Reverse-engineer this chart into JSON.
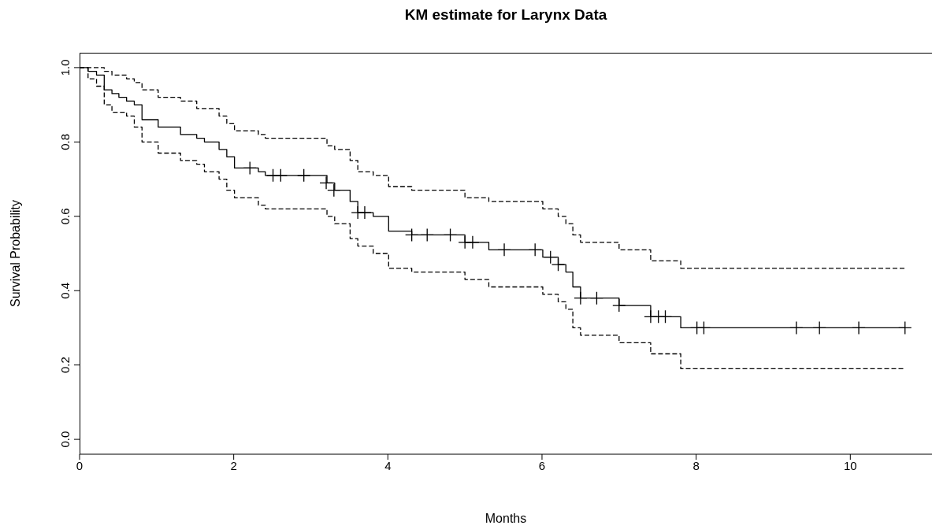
{
  "chart_data": {
    "type": "step",
    "title": "KM estimate for Larynx Data",
    "xlabel": "Months",
    "ylabel": "Survival Probability",
    "xlim": [
      0,
      11.06
    ],
    "xticks": [
      0,
      2,
      4,
      6,
      8,
      10
    ],
    "ylim": [
      -0.04,
      1.04
    ],
    "yticks": [
      {
        "value": 0,
        "label": "0.0"
      },
      {
        "value": 0.2,
        "label": "0.2"
      },
      {
        "value": 0.4,
        "label": "0.4"
      },
      {
        "value": 0.6,
        "label": "0.6"
      },
      {
        "value": 0.8,
        "label": "0.8"
      },
      {
        "value": 1,
        "label": "1.0"
      }
    ],
    "series": [
      {
        "color": "#000000",
        "line_style": "solid",
        "x": [
          0,
          0.11,
          0.22,
          0.32,
          0.42,
          0.51,
          0.61,
          0.71,
          0.81,
          1.02,
          1.31,
          1.52,
          1.62,
          1.81,
          1.91,
          2.01,
          2.32,
          2.41,
          3.21,
          3.31,
          3.51,
          3.61,
          3.81,
          4.01,
          4.31,
          5.0,
          5.31,
          6.01,
          6.21,
          6.31,
          6.4,
          6.5,
          7.0,
          7.41,
          7.8,
          10.71
        ],
        "values": [
          1,
          0.99,
          0.98,
          0.94,
          0.93,
          0.92,
          0.91,
          0.9,
          0.86,
          0.84,
          0.82,
          0.81,
          0.8,
          0.78,
          0.76,
          0.73,
          0.72,
          0.71,
          0.69,
          0.67,
          0.64,
          0.61,
          0.6,
          0.56,
          0.55,
          0.53,
          0.51,
          0.49,
          0.47,
          0.45,
          0.41,
          0.38,
          0.36,
          0.33,
          0.3,
          0.3
        ]
      },
      {
        "color": "#000000",
        "line_style": "dashed",
        "x": [
          0,
          0.32,
          0.42,
          0.51,
          0.61,
          0.71,
          0.81,
          1.02,
          1.31,
          1.52,
          1.62,
          1.81,
          1.91,
          2.01,
          2.32,
          2.41,
          3.21,
          3.31,
          3.51,
          3.61,
          3.81,
          4.01,
          4.31,
          5.0,
          5.31,
          6.01,
          6.21,
          6.31,
          6.4,
          6.5,
          7.0,
          7.41,
          7.8,
          10.71
        ],
        "values": [
          1,
          0.99,
          0.98,
          0.98,
          0.97,
          0.96,
          0.94,
          0.92,
          0.91,
          0.89,
          0.89,
          0.87,
          0.85,
          0.83,
          0.82,
          0.81,
          0.79,
          0.78,
          0.75,
          0.72,
          0.71,
          0.68,
          0.67,
          0.65,
          0.64,
          0.62,
          0.6,
          0.58,
          0.55,
          0.53,
          0.51,
          0.48,
          0.46,
          0.46
        ]
      },
      {
        "color": "#000000",
        "line_style": "dashed",
        "x": [
          0,
          0.11,
          0.22,
          0.32,
          0.42,
          0.51,
          0.61,
          0.71,
          0.81,
          1.02,
          1.31,
          1.52,
          1.62,
          1.81,
          1.91,
          2.01,
          2.32,
          2.41,
          3.21,
          3.31,
          3.51,
          3.61,
          3.81,
          4.01,
          4.31,
          5.0,
          5.31,
          6.01,
          6.21,
          6.31,
          6.4,
          6.5,
          7.0,
          7.41,
          7.8,
          10.71
        ],
        "values": [
          1,
          0.97,
          0.95,
          0.9,
          0.88,
          0.88,
          0.87,
          0.84,
          0.8,
          0.77,
          0.75,
          0.74,
          0.72,
          0.7,
          0.67,
          0.65,
          0.63,
          0.62,
          0.6,
          0.58,
          0.54,
          0.52,
          0.5,
          0.46,
          0.45,
          0.43,
          0.41,
          0.39,
          0.37,
          0.35,
          0.3,
          0.28,
          0.26,
          0.23,
          0.19,
          0.19
        ]
      },
      {
        "type": "scatter",
        "color": "#000000",
        "marker": "cross",
        "x": [
          2.21,
          2.51,
          2.61,
          2.91,
          3.2,
          3.3,
          3.61,
          3.7,
          4.31,
          4.51,
          4.81,
          5.0,
          5.1,
          5.51,
          5.91,
          6.11,
          6.21,
          6.5,
          6.71,
          7.0,
          7.41,
          7.51,
          7.6,
          8.01,
          8.1,
          9.3,
          9.6,
          10.11,
          10.71
        ],
        "values": [
          0.73,
          0.71,
          0.71,
          0.71,
          0.69,
          0.67,
          0.61,
          0.61,
          0.55,
          0.55,
          0.55,
          0.53,
          0.53,
          0.51,
          0.51,
          0.49,
          0.47,
          0.38,
          0.38,
          0.36,
          0.33,
          0.33,
          0.33,
          0.3,
          0.3,
          0.3,
          0.3,
          0.3,
          0.3
        ]
      }
    ]
  }
}
